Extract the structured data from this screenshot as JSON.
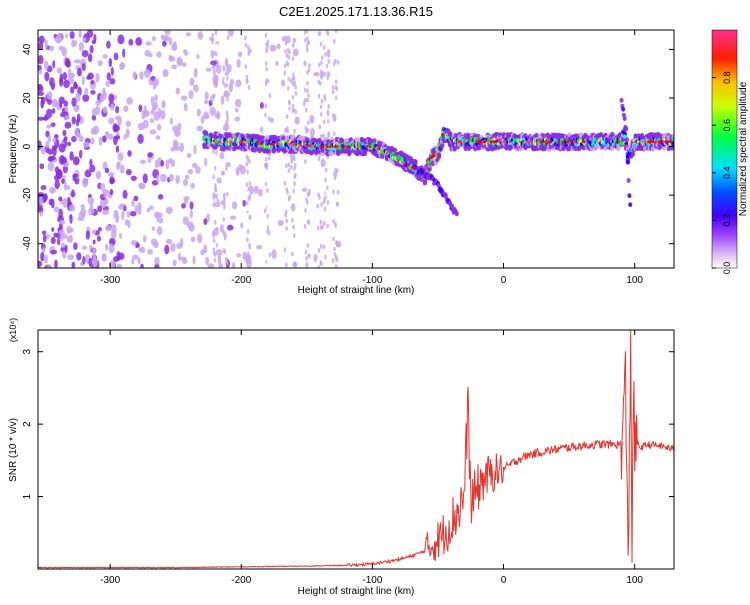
{
  "title": "C2E1.2025.171.13.36.R15",
  "chart_data": [
    {
      "type": "heatmap",
      "xlabel": "Height of straight line (km)",
      "ylabel": "Frequency (Hz)",
      "xlim": [
        -355,
        130
      ],
      "ylim": [
        -50,
        48
      ],
      "xticks": [
        -300,
        -200,
        -100,
        0,
        100
      ],
      "yticks": [
        -40,
        -20,
        0,
        20,
        40
      ],
      "colorbar": {
        "label": "Normalized spectral amplitude",
        "ticks": [
          0.0,
          0.2,
          0.4,
          0.6,
          0.8
        ],
        "range": [
          0,
          1
        ],
        "colors": [
          "#ffffff",
          "#c8a6f0",
          "#8a2be2",
          "#3f00ff",
          "#0000ff",
          "#00ffff",
          "#00ff00",
          "#ffff00",
          "#ff8000",
          "#ff0000",
          "#ff3090"
        ]
      },
      "ridge": {
        "x": [
          -228,
          -215,
          -200,
          -180,
          -160,
          -140,
          -120,
          -100,
          -90,
          -80,
          -70,
          -60,
          -55,
          -50,
          -45,
          -40,
          -20,
          0,
          20,
          40,
          60,
          80,
          90,
          92,
          95,
          100,
          110,
          130
        ],
        "y": [
          3,
          2,
          2,
          1,
          1,
          0,
          0,
          0,
          -2,
          -5,
          -8,
          -12,
          -5,
          -3,
          6,
          2,
          2,
          2,
          2,
          2,
          2,
          2,
          2,
          6,
          -5,
          2,
          2,
          2
        ]
      },
      "branches": [
        {
          "x": [
            -65,
            -55,
            -50,
            -45,
            -40,
            -35
          ],
          "y": [
            -10,
            -13,
            -16,
            -20,
            -25,
            -28
          ]
        },
        {
          "x": [
            90,
            92,
            94,
            95,
            96,
            97
          ],
          "y": [
            20,
            12,
            5,
            -10,
            -20,
            -25
          ]
        }
      ]
    },
    {
      "type": "line",
      "xlabel": "Height of straight line (km)",
      "ylabel": "SNR (10 * v/v)",
      "scale_label": "(x10⁴)",
      "xlim": [
        -355,
        130
      ],
      "ylim": [
        0,
        3.3
      ],
      "xticks": [
        -300,
        -200,
        -100,
        0,
        100
      ],
      "yticks": [
        1,
        2,
        3
      ],
      "color": "#e8322c",
      "series": [
        {
          "x": [
            -355,
            -300,
            -250,
            -200,
            -150,
            -120,
            -100,
            -90,
            -80,
            -70,
            -60,
            -50,
            -45,
            -40,
            -35,
            -30,
            -27,
            -25,
            -20,
            -15,
            -10,
            -5,
            0,
            10,
            20,
            30,
            40,
            50,
            60,
            70,
            80,
            90,
            93,
            95,
            97,
            98,
            99,
            100,
            101,
            103,
            105,
            110,
            120,
            130
          ],
          "values": [
            0.02,
            0.02,
            0.02,
            0.03,
            0.04,
            0.05,
            0.07,
            0.1,
            0.13,
            0.18,
            0.25,
            0.4,
            0.5,
            0.65,
            0.8,
            1.0,
            2.3,
            0.9,
            1.1,
            1.25,
            1.3,
            1.35,
            1.38,
            1.5,
            1.58,
            1.62,
            1.65,
            1.68,
            1.7,
            1.72,
            1.72,
            1.72,
            2.6,
            0.1,
            3.3,
            0.05,
            2.5,
            1.7,
            1.75,
            1.7,
            1.68,
            1.72,
            1.7,
            1.65
          ]
        }
      ]
    }
  ]
}
